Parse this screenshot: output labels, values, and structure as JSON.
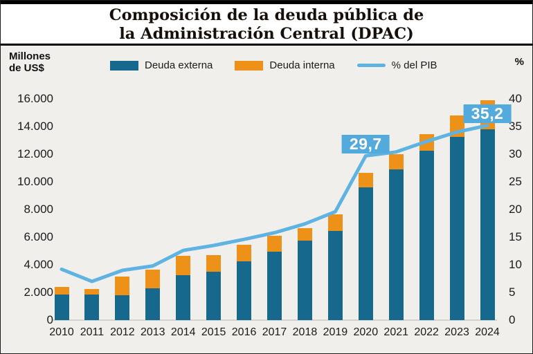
{
  "page": {
    "title_line1": "Composición de la deuda pública de",
    "title_line2": "la Administración Central (DPAC)"
  },
  "axes": {
    "left_unit_line1": "Millones",
    "left_unit_line2": "de US$",
    "right_unit": "%",
    "left_ticks": [
      "16.000",
      "14.000",
      "12.000",
      "10.000",
      "8.000",
      "6.000",
      "4.000",
      "2.000",
      "0"
    ],
    "right_ticks": [
      "40",
      "35",
      "30",
      "25",
      "20",
      "15",
      "10",
      "5",
      "0"
    ]
  },
  "legend": [
    {
      "label": "Deuda externa",
      "color": "#16698c",
      "type": "rect",
      "icon": "externa-swatch-icon"
    },
    {
      "label": "Deuda interna",
      "color": "#ee9118",
      "type": "rect",
      "icon": "interna-swatch-icon"
    },
    {
      "label": "% del PIB",
      "color": "#5eb3e3",
      "type": "line",
      "icon": "pib-line-swatch-icon"
    }
  ],
  "chart_data": {
    "type": "bar",
    "subtype": "stacked-bars-with-line",
    "title": "Composición de la deuda pública de la Administración Central (DPAC)",
    "left_axis_label": "Millones de US$",
    "right_axis_label": "%",
    "left_axis_range": [
      0,
      16000
    ],
    "right_axis_range": [
      0,
      40
    ],
    "grid": false,
    "legend_position": "top",
    "categories": [
      "2010",
      "2011",
      "2012",
      "2013",
      "2014",
      "2015",
      "2016",
      "2017",
      "2018",
      "2019",
      "2020",
      "2021",
      "2022",
      "2023",
      "2024"
    ],
    "series": [
      {
        "name": "Deuda externa",
        "color": "#16698c",
        "values": [
          1870,
          1835,
          1800,
          2285,
          3250,
          3500,
          4250,
          4970,
          5750,
          6470,
          9620,
          10890,
          12270,
          13250,
          13790
        ]
      },
      {
        "name": "Deuda interna",
        "color": "#ee9118",
        "values": [
          550,
          415,
          1335,
          1385,
          1420,
          1200,
          1200,
          1150,
          920,
          1165,
          1050,
          1110,
          1180,
          1535,
          2130
        ]
      }
    ],
    "line_series": {
      "name": "% del PIB",
      "color": "#5eb3e3",
      "values": [
        9.2,
        7.0,
        9.0,
        9.8,
        12.6,
        13.5,
        14.6,
        15.8,
        17.4,
        19.6,
        29.7,
        30.4,
        32.3,
        34.0,
        35.2
      ]
    },
    "annotations": [
      {
        "category": "2020",
        "text": "29,7",
        "color": "#53aadd"
      },
      {
        "category": "2024",
        "text": "35,2",
        "color": "#53aadd"
      }
    ]
  }
}
